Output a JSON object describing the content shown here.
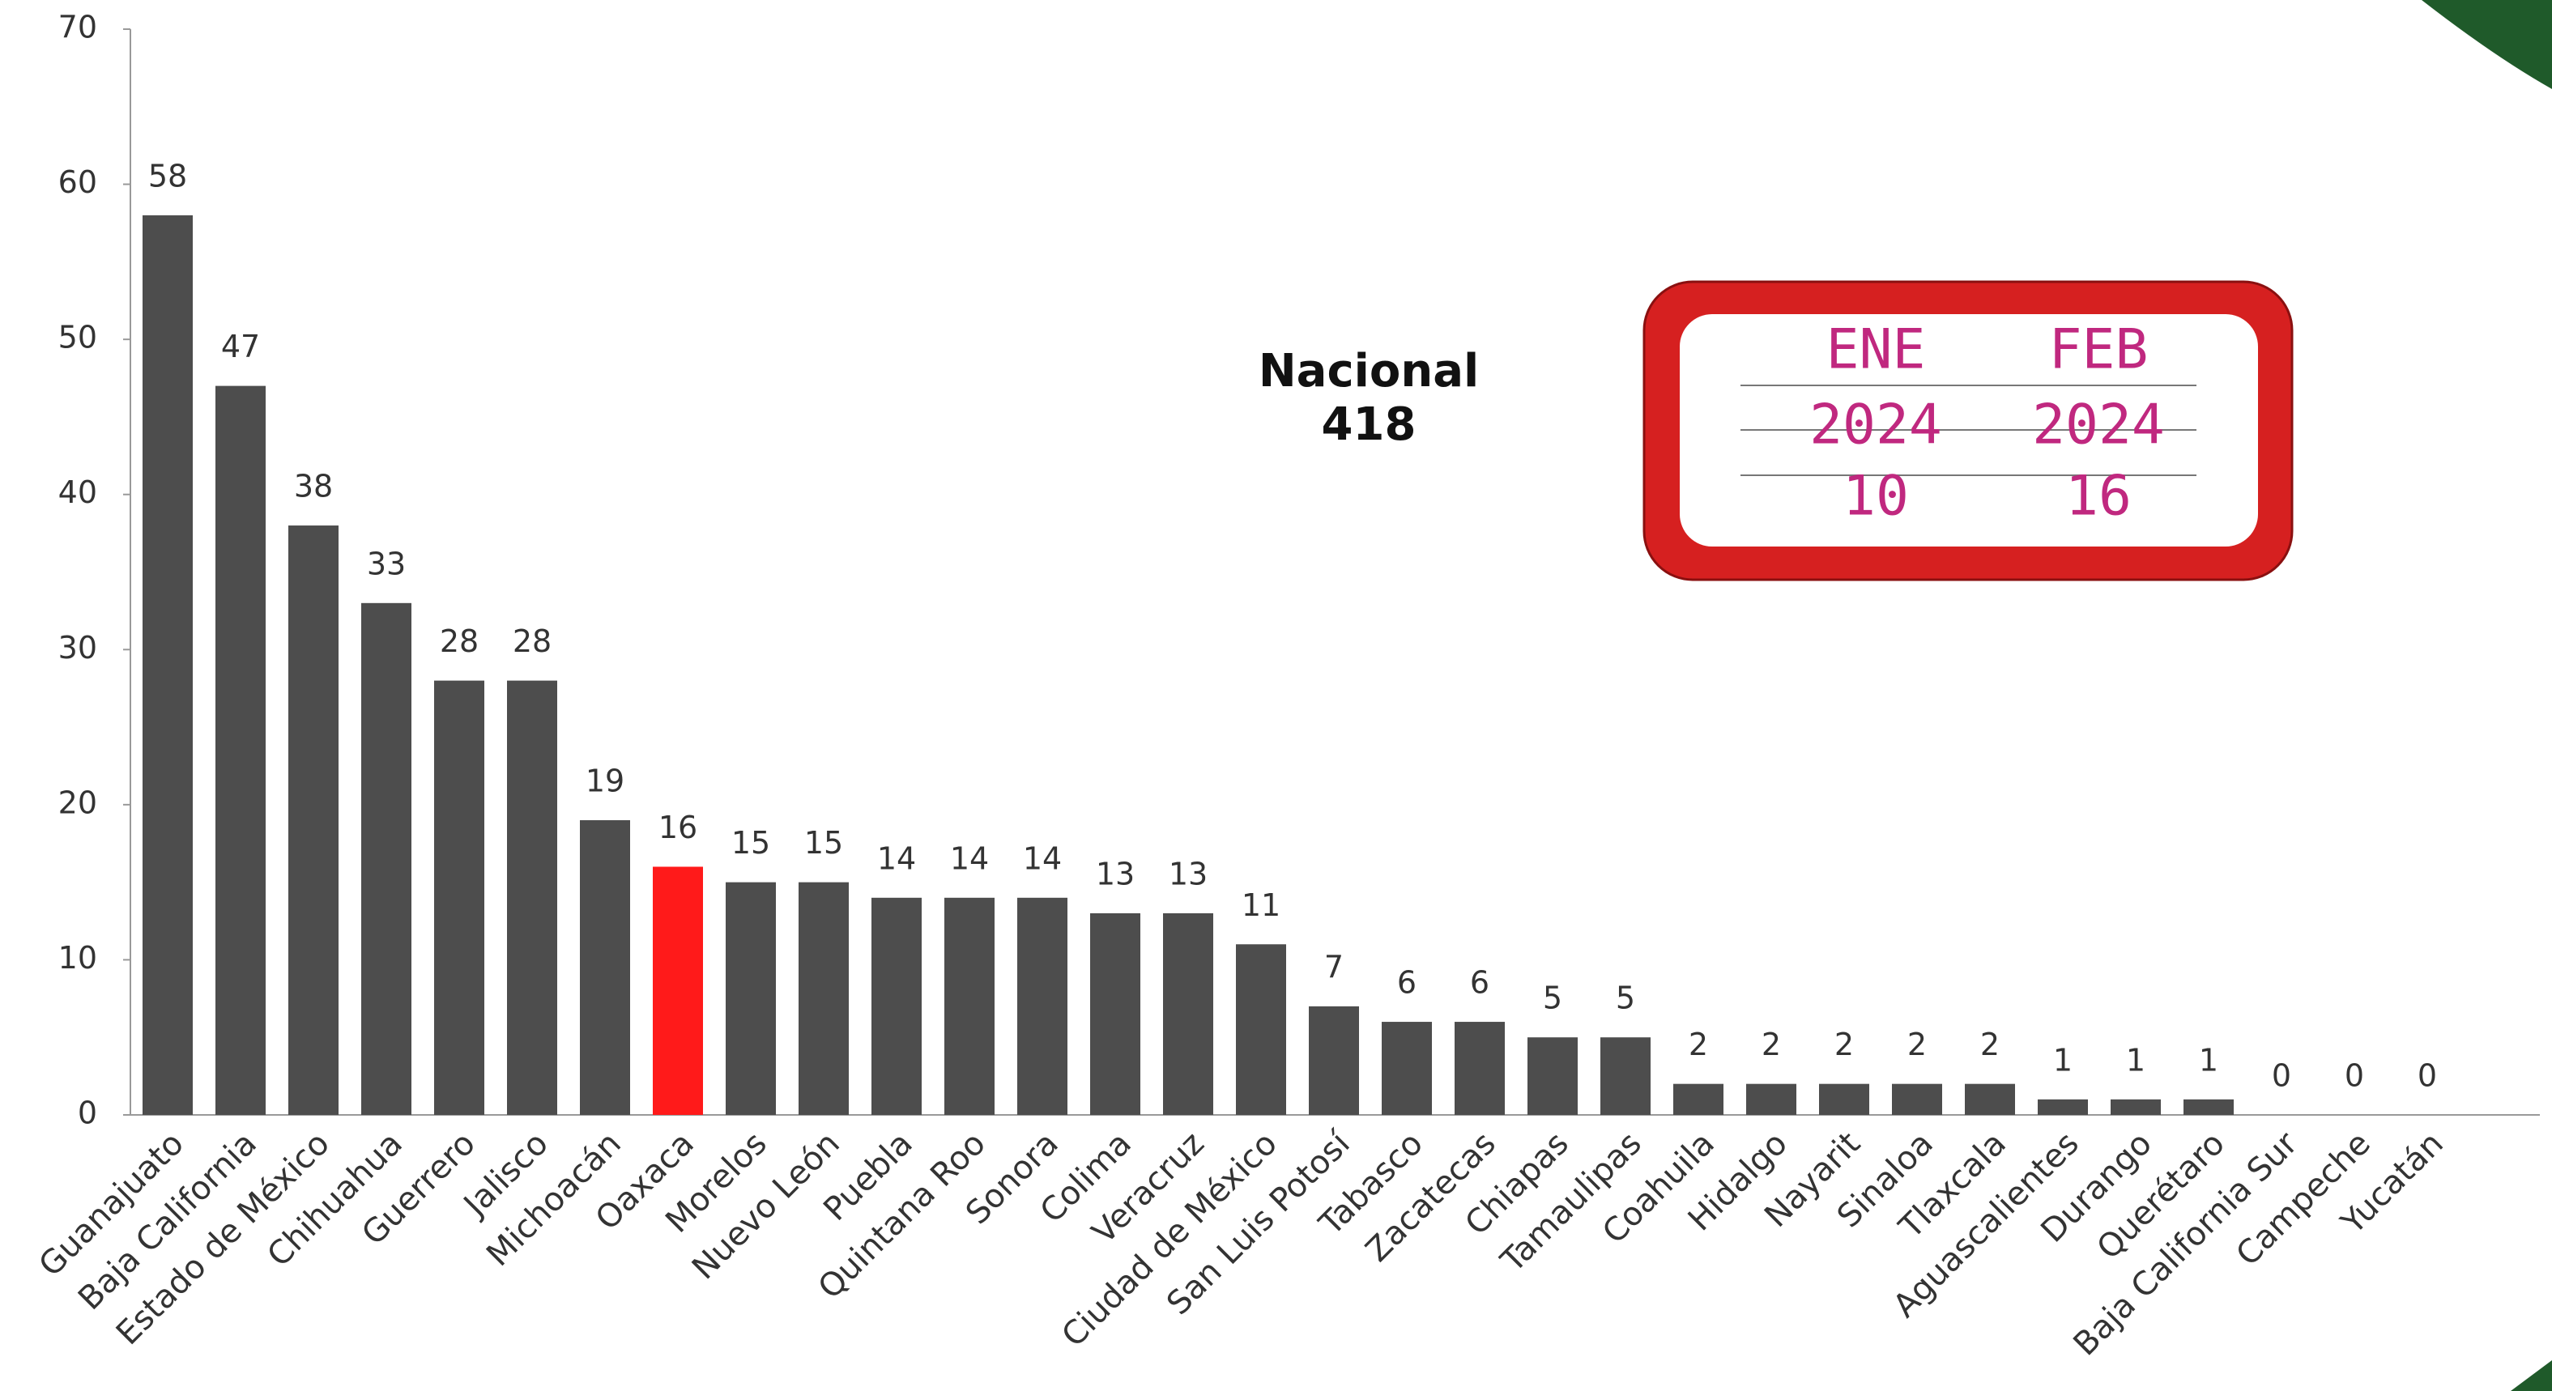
{
  "chart_data": {
    "type": "bar",
    "categories": [
      "Guanajuato",
      "Baja California",
      "Estado de México",
      "Chihuahua",
      "Guerrero",
      "Jalisco",
      "Michoacán",
      "Oaxaca",
      "Morelos",
      "Nuevo León",
      "Puebla",
      "Quintana Roo",
      "Sonora",
      "Colima",
      "Veracruz",
      "Ciudad de México",
      "San Luis Potosí",
      "Tabasco",
      "Zacatecas",
      "Chiapas",
      "Tamaulipas",
      "Coahuila",
      "Hidalgo",
      "Nayarit",
      "Sinaloa",
      "Tlaxcala",
      "Aguascalientes",
      "Durango",
      "Querétaro",
      "Baja California Sur",
      "Campeche",
      "Yucatán"
    ],
    "values": [
      58,
      47,
      38,
      33,
      28,
      28,
      19,
      16,
      15,
      15,
      14,
      14,
      14,
      13,
      13,
      11,
      7,
      6,
      6,
      5,
      5,
      2,
      2,
      2,
      2,
      2,
      1,
      1,
      1,
      0,
      0,
      0
    ],
    "colors": [
      "#4d4d4d",
      "#4d4d4d",
      "#4d4d4d",
      "#4d4d4d",
      "#4d4d4d",
      "#4d4d4d",
      "#4d4d4d",
      "#ff1a1a",
      "#4d4d4d",
      "#4d4d4d",
      "#4d4d4d",
      "#4d4d4d",
      "#4d4d4d",
      "#4d4d4d",
      "#4d4d4d",
      "#4d4d4d",
      "#4d4d4d",
      "#4d4d4d",
      "#4d4d4d",
      "#4d4d4d",
      "#4d4d4d",
      "#4d4d4d",
      "#4d4d4d",
      "#4d4d4d",
      "#4d4d4d",
      "#4d4d4d",
      "#4d4d4d",
      "#4d4d4d",
      "#4d4d4d",
      "#4d4d4d",
      "#4d4d4d",
      "#4d4d4d"
    ],
    "ylim": [
      0,
      70
    ],
    "yticks": [
      0,
      10,
      20,
      30,
      40,
      50,
      60,
      70
    ],
    "grid": false,
    "national": {
      "label": "Nacional",
      "value": 418
    },
    "table": {
      "columns": [
        "ENE",
        "FEB"
      ],
      "rows": [
        [
          "2024",
          "2024"
        ],
        [
          10,
          16
        ]
      ]
    }
  }
}
